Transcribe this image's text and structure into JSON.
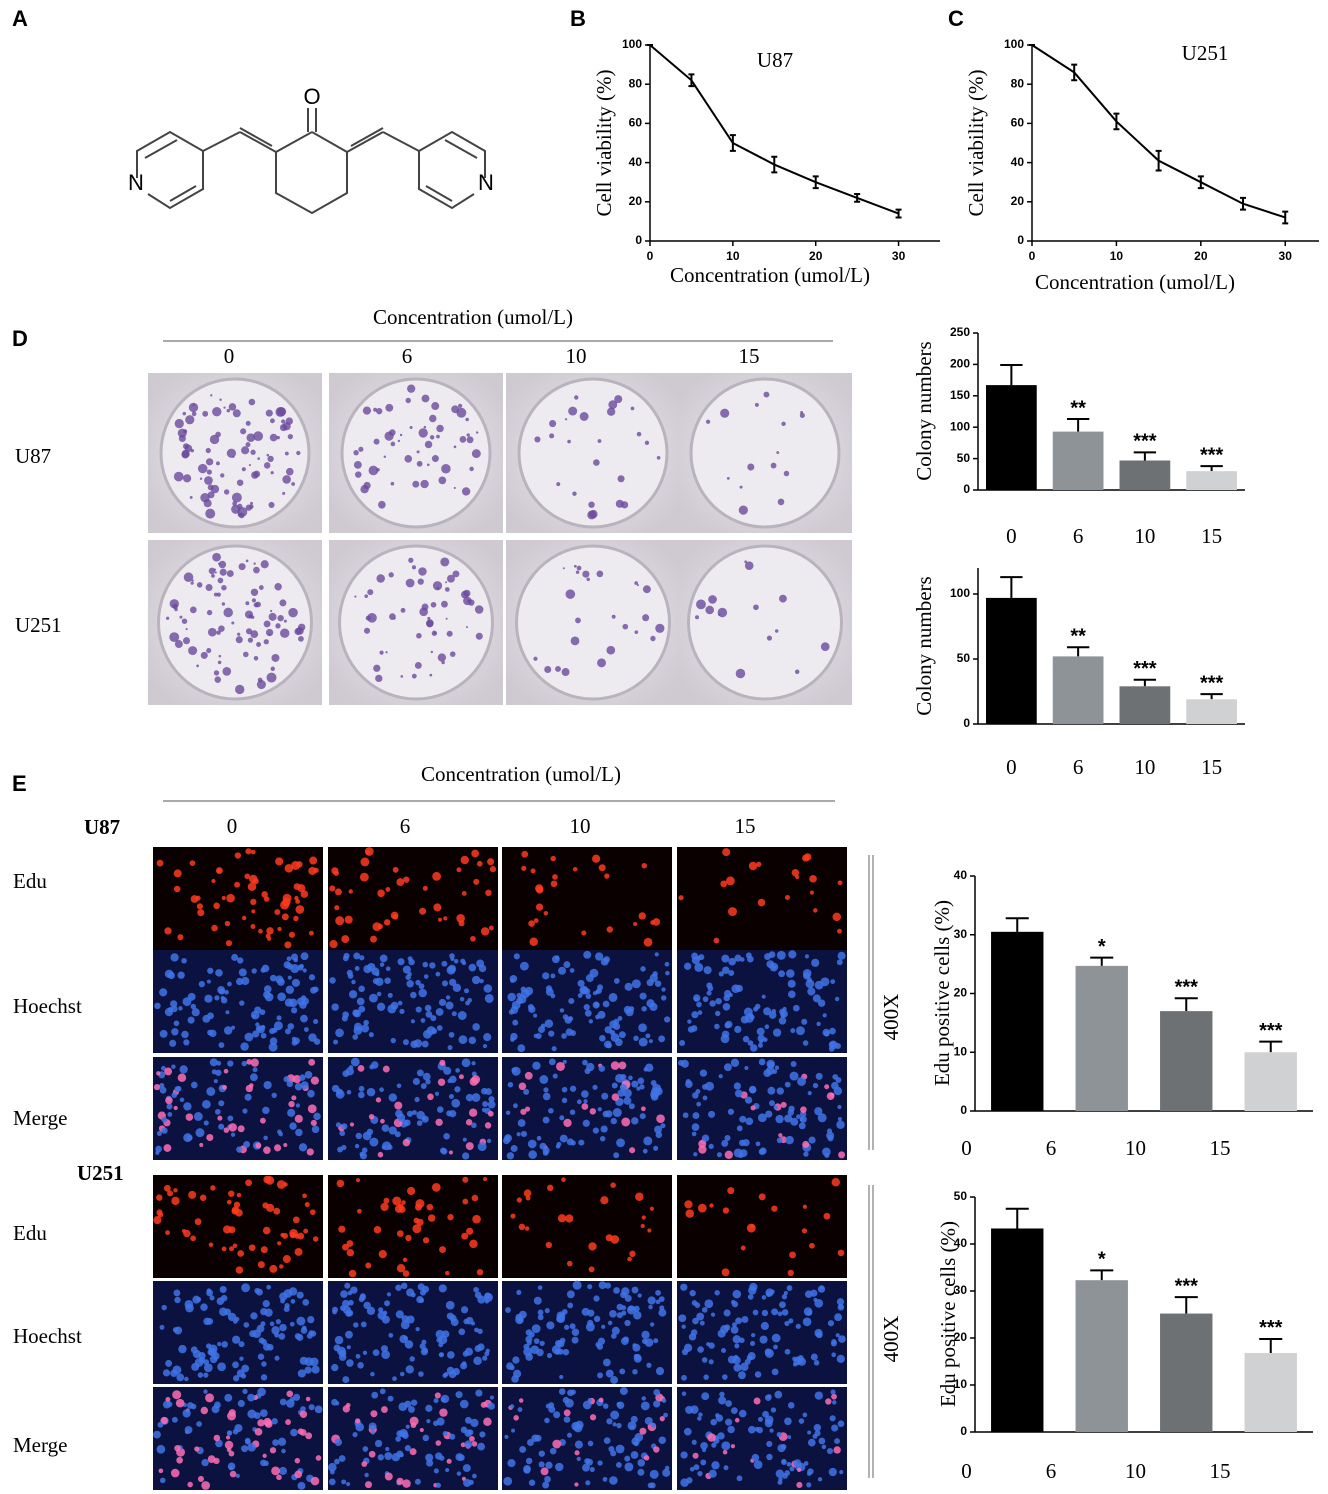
{
  "panels": [
    "A",
    "B",
    "C",
    "D",
    "E"
  ],
  "structure": {
    "atoms": [
      "O",
      "N",
      "N"
    ]
  },
  "chart_data": [
    {
      "type": "line",
      "title": "U87",
      "x": [
        0,
        5,
        10,
        15,
        20,
        25,
        30
      ],
      "values": [
        100,
        82,
        50,
        39,
        30,
        22,
        14
      ],
      "errors": [
        0,
        3,
        4,
        4,
        3,
        2,
        2
      ],
      "color": "#000000",
      "xlim": [
        0,
        35
      ],
      "xticks": [
        0,
        10,
        20,
        30
      ],
      "ylim": [
        0,
        100
      ],
      "yticks": [
        0,
        20,
        40,
        60,
        80,
        100
      ],
      "x_label": "Concentration (umol/L)",
      "y_label": "Cell viability (%)"
    },
    {
      "type": "line",
      "title": "U251",
      "x": [
        0,
        5,
        10,
        15,
        20,
        25,
        30
      ],
      "values": [
        100,
        86,
        61,
        41,
        30,
        19,
        12
      ],
      "errors": [
        0,
        4,
        4,
        5,
        3,
        3,
        3
      ],
      "color": "#000000",
      "xlim": [
        0,
        34
      ],
      "xticks": [
        0,
        10,
        20,
        30
      ],
      "ylim": [
        0,
        100
      ],
      "yticks": [
        0,
        20,
        40,
        60,
        80,
        100
      ],
      "x_label": "Concentration (umol/L)",
      "y_label": "Cell viability (%)"
    },
    {
      "type": "bar",
      "categories": [
        "0",
        "6",
        "10",
        "15"
      ],
      "values": [
        167,
        93,
        47,
        30
      ],
      "errors": [
        32,
        20,
        13,
        8
      ],
      "colors": [
        "#000000",
        "#8e9398",
        "#6d7174",
        "#cfd1d3"
      ],
      "annotations": [
        null,
        "**",
        "***",
        "***"
      ],
      "ylim": [
        0,
        250
      ],
      "yticks": [
        0,
        50,
        100,
        150,
        200,
        250
      ],
      "y_label": "Colony numbers"
    },
    {
      "type": "bar",
      "categories": [
        "0",
        "6",
        "10",
        "15"
      ],
      "values": [
        97,
        52,
        29,
        19
      ],
      "errors": [
        16,
        7,
        5,
        4
      ],
      "colors": [
        "#000000",
        "#8e9398",
        "#6d7174",
        "#cfd1d3"
      ],
      "annotations": [
        null,
        "**",
        "***",
        "***"
      ],
      "ylim": [
        0,
        120
      ],
      "yticks": [
        0,
        50,
        100
      ],
      "y_label": "Colony numbers"
    },
    {
      "type": "bar",
      "categories": [
        "0",
        "6",
        "10",
        "15"
      ],
      "values": [
        30.5,
        24.7,
        17,
        10
      ],
      "errors": [
        2.3,
        1.4,
        2.2,
        1.8
      ],
      "colors": [
        "#000000",
        "#8e9398",
        "#6d7174",
        "#cfd1d3"
      ],
      "annotations": [
        null,
        "*",
        "***",
        "***"
      ],
      "ylim": [
        0,
        40
      ],
      "yticks": [
        0,
        10,
        20,
        30,
        40
      ],
      "y_label": "Edu positive cells  (%)"
    },
    {
      "type": "bar",
      "categories": [
        "0",
        "6",
        "10",
        "15"
      ],
      "values": [
        43.3,
        32.3,
        25.2,
        16.8
      ],
      "errors": [
        4.2,
        2.1,
        3.5,
        3
      ],
      "colors": [
        "#000000",
        "#8e9398",
        "#6d7174",
        "#cfd1d3"
      ],
      "annotations": [
        null,
        "*",
        "***",
        "***"
      ],
      "ylim": [
        0,
        50
      ],
      "yticks": [
        0,
        10,
        20,
        30,
        40,
        50
      ],
      "y_label": "Edu positive cells  (%)"
    }
  ],
  "colony_panel": {
    "header": "Concentration (umol/L)",
    "columns": [
      "0",
      "6",
      "10",
      "15"
    ],
    "rows": [
      "U87",
      "U251"
    ]
  },
  "edu_panel": {
    "header": "Concentration (umol/L)",
    "columns": [
      "0",
      "6",
      "10",
      "15"
    ],
    "groups": [
      {
        "name": "U87",
        "rows": [
          "Edu",
          "Hoechst",
          "Merge"
        ],
        "magnification": "400X"
      },
      {
        "name": "U251",
        "rows": [
          "Edu",
          "Hoechst",
          "Merge"
        ],
        "magnification": "400X"
      }
    ]
  }
}
